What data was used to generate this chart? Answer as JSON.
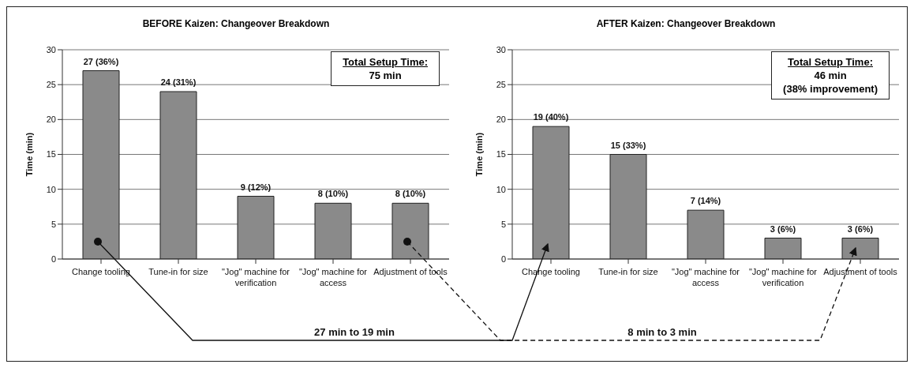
{
  "chart_data": [
    {
      "type": "bar",
      "title": "BEFORE Kaizen: Changeover Breakdown",
      "ylabel": "Time (min)",
      "categories": [
        "Change tooling",
        "Tune-in for size",
        "\"Jog\" machine for verification",
        "\"Jog\" machine for access",
        "Adjustment of tools"
      ],
      "values": [
        27,
        24,
        9,
        8,
        8
      ],
      "value_labels": [
        "27 (36%)",
        "24 (31%)",
        "9 (12%)",
        "8 (10%)",
        "8 (10%)"
      ],
      "color": "#8a8a8a",
      "ylim": [
        0,
        30
      ],
      "yticks": [
        0,
        5,
        10,
        15,
        20,
        25,
        30
      ],
      "grid": "y",
      "annotations": [
        "Total Setup Time:\n75 min",
        "27 min to 19 min"
      ]
    },
    {
      "type": "bar",
      "title": "AFTER Kaizen: Changeover Breakdown",
      "ylabel": "Time (min)",
      "categories": [
        "Change tooling",
        "Tune-in for size",
        "\"Jog\" machine for access",
        "\"Jog\" machine for verification",
        "Adjustment of tools"
      ],
      "values": [
        19,
        15,
        7,
        3,
        3
      ],
      "value_labels": [
        "19 (40%)",
        "15 (33%)",
        "7 (14%)",
        "3 (6%)",
        "3 (6%)"
      ],
      "color": "#8a8a8a",
      "ylim": [
        0,
        30
      ],
      "yticks": [
        0,
        5,
        10,
        15,
        20,
        25,
        30
      ],
      "grid": "y",
      "annotations": [
        "Total Setup Time:\n46 min\n(38% improvement)",
        "8 min to 3 min"
      ]
    }
  ]
}
